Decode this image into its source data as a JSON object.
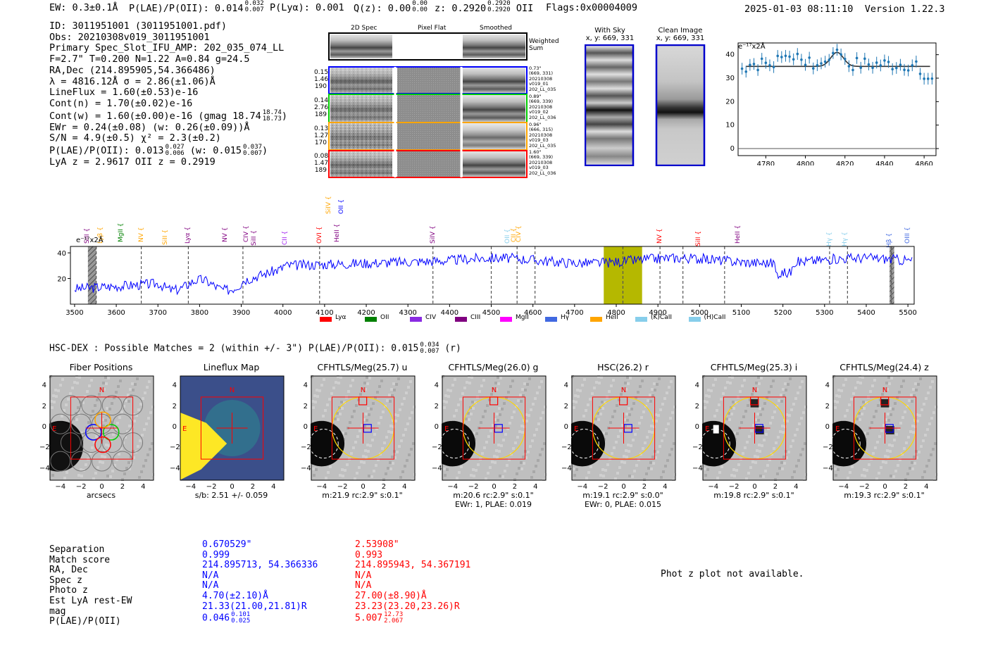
{
  "header": {
    "ew": "EW: 0.3±0.1Å",
    "plae_label": "P(LAE)/P(OII): 0.014",
    "plae_hi": "0.032",
    "plae_lo": "0.007",
    "plya": "P(Lyα): 0.001",
    "qz_label": "Q(z): 0.00",
    "qz_hi": "0.00",
    "qz_lo": "0.00",
    "z_label": "z: 0.2920",
    "z_hi": "0.2920",
    "z_lo": "0.2920",
    "z_line": "OII",
    "flags": "Flags:0x00004009",
    "datetime": "2025-01-03 08:11:10",
    "version": "Version 1.22.3"
  },
  "info": {
    "id": "ID: 3011951001 (3011951001.pdf)",
    "obs": "Obs: 20210308v019_3011951001",
    "primary": "Primary Spec_Slot_IFU_AMP: 202_035_074_LL",
    "params": "F=2.7\"  T=0.200  N=1.22  A=0.84  g=24.5",
    "radec": "RA,Dec (214.895905,54.366486)",
    "lambda": "λ = 4816.12Å  σ = 2.86(±1.06)Å",
    "lineflux": "LineFlux = 1.60(±0.53)e-16",
    "contn": "Cont(n) = 1.70(±0.02)e-16",
    "contw": "Cont(w) = 1.60(±0.00)e-16 (gmag 18.74",
    "contw_hi": "18.74",
    "contw_lo": "18.73",
    "contw_end": ")",
    "ewr": "EWr = 0.24(±0.08) (w: 0.26(±0.09))Å",
    "sn": "S/N = 4.9(±0.5)  χ² = 2.3(±0.2)",
    "plae": "P(LAE)/P(OII): 0.013",
    "plae_hi": "0.027",
    "plae_lo": "0.006",
    "plae_w": "(w: 0.015",
    "plae_w_hi": "0.037",
    "plae_w_lo": "0.007",
    "plae_w_end": ")",
    "lyaz": "LyA z = 2.9617  OII z = 0.2919"
  },
  "cutouts": {
    "col_2d": "2D Spec",
    "col_flat": "Pixel Flat",
    "col_smooth": "Smoothed",
    "weighted": "Weighted",
    "sum": "Sum",
    "rows": [
      {
        "left": [
          "0.15",
          "1.46",
          "190"
        ],
        "right": [
          "0.73\"",
          "(669, 331)",
          "20210308",
          "v019_01",
          "202_LL_035"
        ],
        "color": "#0000ff"
      },
      {
        "left": [
          "0.14",
          "2.76",
          "189"
        ],
        "right": [
          "0.89\"",
          "(669, 339)",
          "20210308",
          "v019_02",
          "202_LL_036"
        ],
        "color": "#00cc00"
      },
      {
        "left": [
          "0.13",
          "1.27",
          "170"
        ],
        "right": [
          "0.96\"",
          "(666, 315)",
          "20210308",
          "v019_03",
          "202_LL_035"
        ],
        "color": "#ffa500"
      },
      {
        "left": [
          "0.08",
          "1.47",
          "189"
        ],
        "right": [
          "1.60\"",
          "(669, 339)",
          "20210308",
          "v019_03",
          "202_LL_036"
        ],
        "color": "#ff0000"
      }
    ],
    "with_sky": "With Sky",
    "with_sky_xy": "x, y: 669, 331",
    "clean": "Clean Image",
    "clean_xy": "x, y: 669, 331"
  },
  "zoom_plot": {
    "unit": "e⁻¹⁷x2Å",
    "yticks": [
      "40",
      "30",
      "20",
      "10",
      "0"
    ],
    "xticks": [
      "4780",
      "4800",
      "4820",
      "4840",
      "4860"
    ]
  },
  "full_spectrum": {
    "unit": "e⁻¹⁷x2Å",
    "yticks": [
      "40",
      "20"
    ],
    "xticks": [
      "3500",
      "3600",
      "3700",
      "3800",
      "3900",
      "4000",
      "4100",
      "4200",
      "4300",
      "4400",
      "4500",
      "4600",
      "4700",
      "4800",
      "4900",
      "5000",
      "5100",
      "5200",
      "5300",
      "5400",
      "5500"
    ],
    "line_labels": [
      {
        "t": "SiII",
        "c": "#800080"
      },
      {
        "t": "Lyβ",
        "c": "#ffa500"
      },
      {
        "t": "MgII",
        "c": "#008000"
      },
      {
        "t": "NV",
        "c": "#ffa500"
      },
      {
        "t": "SiII",
        "c": "#ffa500"
      },
      {
        "t": "Lyα",
        "c": "#800080"
      },
      {
        "t": "NV",
        "c": "#800080"
      },
      {
        "t": "CIV",
        "c": "#800080"
      },
      {
        "t": "SiII",
        "c": "#800080"
      },
      {
        "t": "CII",
        "c": "#a020f0"
      },
      {
        "t": "OVI",
        "c": "#ff0000"
      },
      {
        "t": "HeII",
        "c": "#800080"
      },
      {
        "t": "SiIV",
        "c": "#ffa500"
      },
      {
        "t": "OII",
        "c": "#0000ff"
      },
      {
        "t": "SiIV",
        "c": "#800080"
      },
      {
        "t": "OII",
        "c": "#87ceeb"
      },
      {
        "t": "CII",
        "c": "#ffa500"
      },
      {
        "t": "CIV",
        "c": "#ffa500"
      },
      {
        "t": "NV",
        "c": "#ff0000"
      },
      {
        "t": "SiII",
        "c": "#ff0000"
      },
      {
        "t": "HeII",
        "c": "#800080"
      },
      {
        "t": "Hγ",
        "c": "#87ceeb"
      },
      {
        "t": "Hγ",
        "c": "#87ceeb"
      },
      {
        "t": "Hβ",
        "c": "#4169e1"
      },
      {
        "t": "OIII",
        "c": "#4169e1"
      }
    ],
    "legend": [
      {
        "t": "Lyα",
        "c": "#ff0000"
      },
      {
        "t": "OII",
        "c": "#008000"
      },
      {
        "t": "CIV",
        "c": "#8a2be2"
      },
      {
        "t": "CIII",
        "c": "#800080"
      },
      {
        "t": "MgII",
        "c": "#ff00ff"
      },
      {
        "t": "Hγ",
        "c": "#4169e1"
      },
      {
        "t": "HeII",
        "c": "#ffa500"
      },
      {
        "t": "(K)CaII",
        "c": "#87ceeb"
      },
      {
        "t": "(H)CaII",
        "c": "#87ceeb"
      }
    ]
  },
  "hsc": {
    "title": "HSC-DEX : Possible Matches = 2 (within +/- 3\")  P(LAE)/P(OII): 0.015",
    "title_hi": "0.034",
    "title_lo": "0.007",
    "title_end": "(r)",
    "panels": [
      {
        "title": "Fiber Positions",
        "cap1": "arcsecs",
        "cap2": ""
      },
      {
        "title": "Lineflux Map",
        "cap1": "s/b: 2.51 +/- 0.059",
        "cap2": ""
      },
      {
        "title": "CFHTLS/Meg(25.7) u",
        "cap1": "m:21.9 rc:2.9\"  s:0.1\"",
        "cap2": ""
      },
      {
        "title": "CFHTLS/Meg(26.0) g",
        "cap1": "m:20.6 rc:2.9\"  s:0.1\"",
        "cap2": "EWr: 1, PLAE: 0.019"
      },
      {
        "title": "HSC(26.2) r",
        "cap1": "m:19.1 rc:2.9\"  s:0.0\"",
        "cap2": "EWr: 0, PLAE: 0.015"
      },
      {
        "title": "CFHTLS/Meg(25.3) i",
        "cap1": "m:19.8 rc:2.9\"  s:0.1\"",
        "cap2": ""
      },
      {
        "title": "CFHTLS/Meg(24.4) z",
        "cap1": "m:19.3 rc:2.9\"  s:0.1\"",
        "cap2": ""
      }
    ],
    "yticks": [
      "4",
      "2",
      "0",
      "−2",
      "−4"
    ],
    "xticks": [
      "−4",
      "−2",
      "0",
      "2",
      "4"
    ],
    "n_label": "N",
    "e_label": "E"
  },
  "table": {
    "labels": [
      "Separation",
      "Match score",
      "RA, Dec",
      "Spec z",
      "Photo z",
      "Est LyA rest-EW",
      "mag",
      "P(LAE)/P(OII)"
    ],
    "col1": [
      "0.670529\"",
      "0.999",
      "214.895713, 54.366336",
      "N/A",
      "N/A",
      "4.70(±2.10)Å",
      "21.33(21.00,21.81)R",
      "0.046"
    ],
    "col1_hi": "0.101",
    "col1_lo": "0.025",
    "col2": [
      "2.53908\"",
      "0.993",
      "214.895943, 54.367191",
      "N/A",
      "N/A",
      "27.00(±8.90)Å",
      "23.23(23.20,23.26)R",
      "5.007"
    ],
    "col2_hi": "12.73",
    "col2_lo": "2.067",
    "photz_msg": "Phot z plot not available."
  },
  "colors": {
    "blue": "#0000ff",
    "red": "#ff0000",
    "spectrum": "#0000ff",
    "band": "#b5b800",
    "yellow": "#ffd700"
  }
}
